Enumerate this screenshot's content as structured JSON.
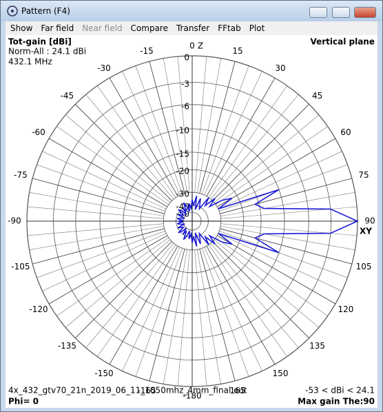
{
  "window": {
    "title": "Pattern  (F4)"
  },
  "menu": [
    "Show",
    "Far field",
    "Near field",
    "Compare",
    "Transfer",
    "FFtab",
    "Plot"
  ],
  "plot": {
    "quantity": "Tot-gain [dBi]",
    "norm": "Norm-All : 24.1 dBi",
    "frequency": "432.1 MHz",
    "plane": "Vertical plane",
    "top_axis": "Z",
    "right_axis": "XY",
    "file": "4x_432_gtv70_21n_2019_06_11_1050mhz_4mm_final.out",
    "range": "-53 < dBi < 24.1",
    "phi": "Phi= 0",
    "max_gain": "Max gain The:90",
    "ring_ticks": [
      0,
      -3,
      -6,
      -10,
      -15,
      -20,
      -30,
      -40,
      -50
    ],
    "angle_ticks": [
      -180,
      -165,
      -150,
      -135,
      -120,
      -105,
      -90,
      -75,
      -60,
      -45,
      -30,
      -15,
      0,
      15,
      30,
      45,
      60,
      75,
      90,
      105,
      120,
      135,
      150,
      165
    ],
    "pattern": {
      "angles": [
        -180,
        -175,
        -170,
        -165,
        -160,
        -155,
        -150,
        -145,
        -140,
        -135,
        -130,
        -125,
        -120,
        -115,
        -110,
        -105,
        -100,
        -95,
        -90,
        -85,
        -80,
        -75,
        -70,
        -65,
        -60,
        -55,
        -50,
        -45,
        -40,
        -35,
        -30,
        -25,
        -20,
        -15,
        -10,
        -5,
        0,
        5,
        10,
        15,
        20,
        25,
        30,
        35,
        40,
        45,
        50,
        55,
        60,
        65,
        70,
        75,
        80,
        85,
        90,
        95,
        100,
        105,
        110,
        115,
        120,
        125,
        130,
        135,
        140,
        145,
        150,
        155,
        160,
        165,
        170,
        175
      ],
      "gains": [
        -35,
        -44,
        -38,
        -48,
        -40,
        -36,
        -46,
        -40,
        -50,
        -42,
        -38,
        -47,
        -44,
        -40,
        -52,
        -45,
        -41,
        -48,
        -43,
        -48,
        -41,
        -45,
        -52,
        -40,
        -44,
        -47,
        -38,
        -42,
        -50,
        -40,
        -46,
        -36,
        -40,
        -48,
        -38,
        -44,
        -35,
        -40,
        -32,
        -45,
        -33,
        -38,
        -42,
        -30,
        -36,
        -28,
        -34,
        -26,
        -22,
        -30,
        -10,
        -16,
        -14,
        -3,
        0,
        -3,
        -14,
        -16,
        -10,
        -30,
        -22,
        -26,
        -34,
        -28,
        -36,
        -30,
        -42,
        -38,
        -33,
        -45,
        -32,
        -40
      ]
    }
  }
}
